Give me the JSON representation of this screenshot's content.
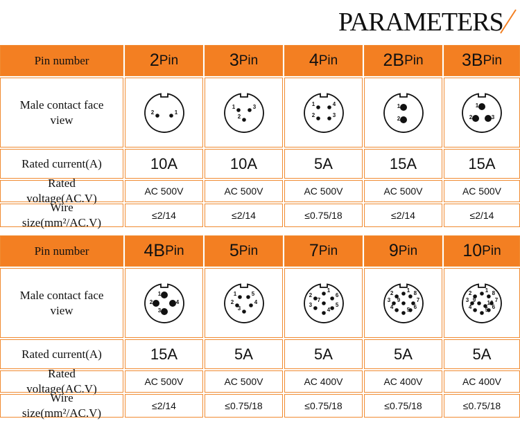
{
  "title": "PARAMETERS",
  "tables": [
    {
      "row_labels": [
        "Pin number",
        "Male contact face view",
        "Rated current(A)",
        "Rated voltage(AC.V)",
        "Wire size(mm²/AC.V)"
      ],
      "columns": [
        {
          "pin_count": "2",
          "pin_unit": "Pin",
          "pins": [
            "2",
            "1"
          ],
          "current": "10A",
          "voltage": "AC 500V",
          "wire": "≤2/14"
        },
        {
          "pin_count": "3",
          "pin_unit": "Pin",
          "pins": [
            "1",
            "3",
            "2"
          ],
          "current": "10A",
          "voltage": "AC 500V",
          "wire": "≤2/14"
        },
        {
          "pin_count": "4",
          "pin_unit": "Pin",
          "pins": [
            "1",
            "4",
            "2",
            "3"
          ],
          "current": "5A",
          "voltage": "AC 500V",
          "wire": "≤0.75/18"
        },
        {
          "pin_count": "2B",
          "pin_unit": "Pin",
          "pins": [
            "1",
            "2"
          ],
          "current": "15A",
          "voltage": "AC 500V",
          "wire": "≤2/14"
        },
        {
          "pin_count": "3B",
          "pin_unit": "Pin",
          "pins": [
            "1",
            "2",
            "3"
          ],
          "current": "15A",
          "voltage": "AC 500V",
          "wire": "≤2/14"
        }
      ]
    },
    {
      "row_labels": [
        "Pin number",
        "Male contact face view",
        "Rated current(A)",
        "Rated voltage(AC.V)",
        "Wire size(mm²/AC.V)"
      ],
      "columns": [
        {
          "pin_count": "4B",
          "pin_unit": "Pin",
          "pins": [
            "1",
            "2",
            "4",
            "3"
          ],
          "current": "15A",
          "voltage": "AC 500V",
          "wire": "≤2/14"
        },
        {
          "pin_count": "5",
          "pin_unit": "Pin",
          "pins": [
            "1",
            "5",
            "2",
            "4",
            "3"
          ],
          "current": "5A",
          "voltage": "AC 500V",
          "wire": "≤0.75/18"
        },
        {
          "pin_count": "7",
          "pin_unit": "Pin",
          "pins": [
            "1",
            "6",
            "5",
            "4",
            "3",
            "2",
            "7"
          ],
          "current": "5A",
          "voltage": "AC 400V",
          "wire": "≤0.75/18"
        },
        {
          "pin_count": "9",
          "pin_unit": "Pin",
          "pins": [
            "1",
            "8",
            "7",
            "6",
            "5",
            "4",
            "3",
            "2",
            "9"
          ],
          "current": "5A",
          "voltage": "AC 400V",
          "wire": "≤0.75/18"
        },
        {
          "pin_count": "10",
          "pin_unit": "Pin",
          "pins": [
            "1",
            "8",
            "7",
            "6",
            "5",
            "4",
            "3",
            "2",
            "9",
            "10"
          ],
          "current": "5A",
          "voltage": "AC 400V",
          "wire": "≤0.75/18"
        }
      ]
    }
  ]
}
